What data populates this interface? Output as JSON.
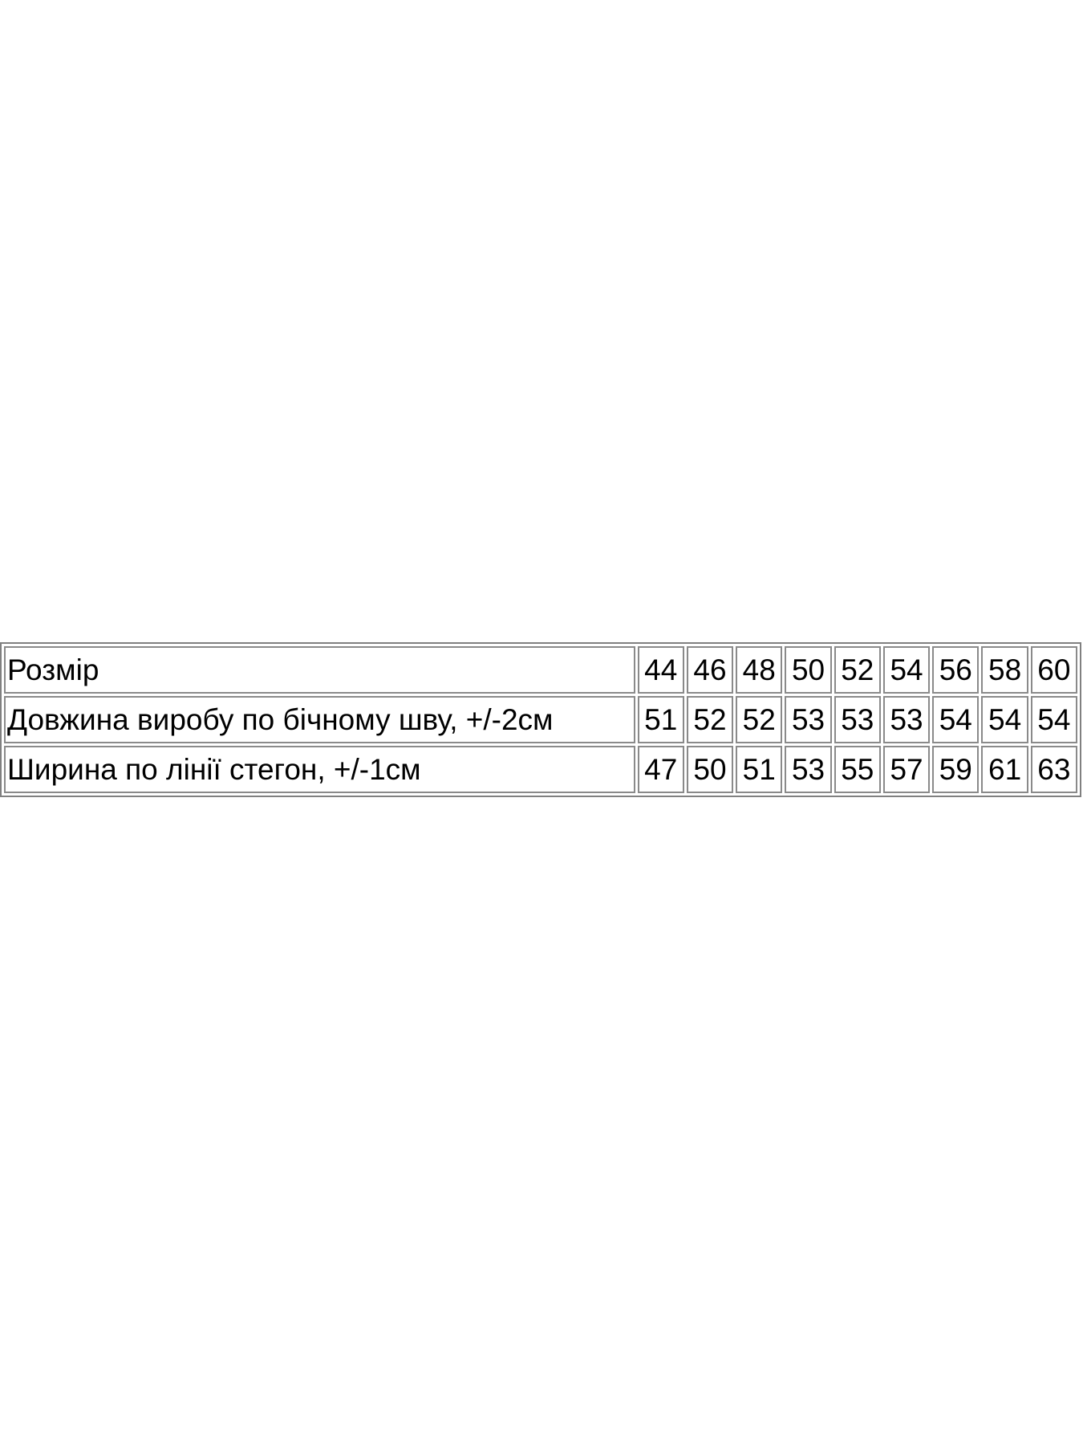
{
  "size_table": {
    "rows": [
      {
        "label": "Розмір",
        "values": [
          "44",
          "46",
          "48",
          "50",
          "52",
          "54",
          "56",
          "58",
          "60"
        ]
      },
      {
        "label": "Довжина виробу по бічному шву, +/-2см",
        "values": [
          "51",
          "52",
          "52",
          "53",
          "53",
          "53",
          "54",
          "54",
          "54"
        ]
      },
      {
        "label": "Ширина по лінії стегон, +/-1см",
        "values": [
          "47",
          "50",
          "51",
          "53",
          "55",
          "57",
          "59",
          "61",
          "63"
        ]
      }
    ]
  }
}
